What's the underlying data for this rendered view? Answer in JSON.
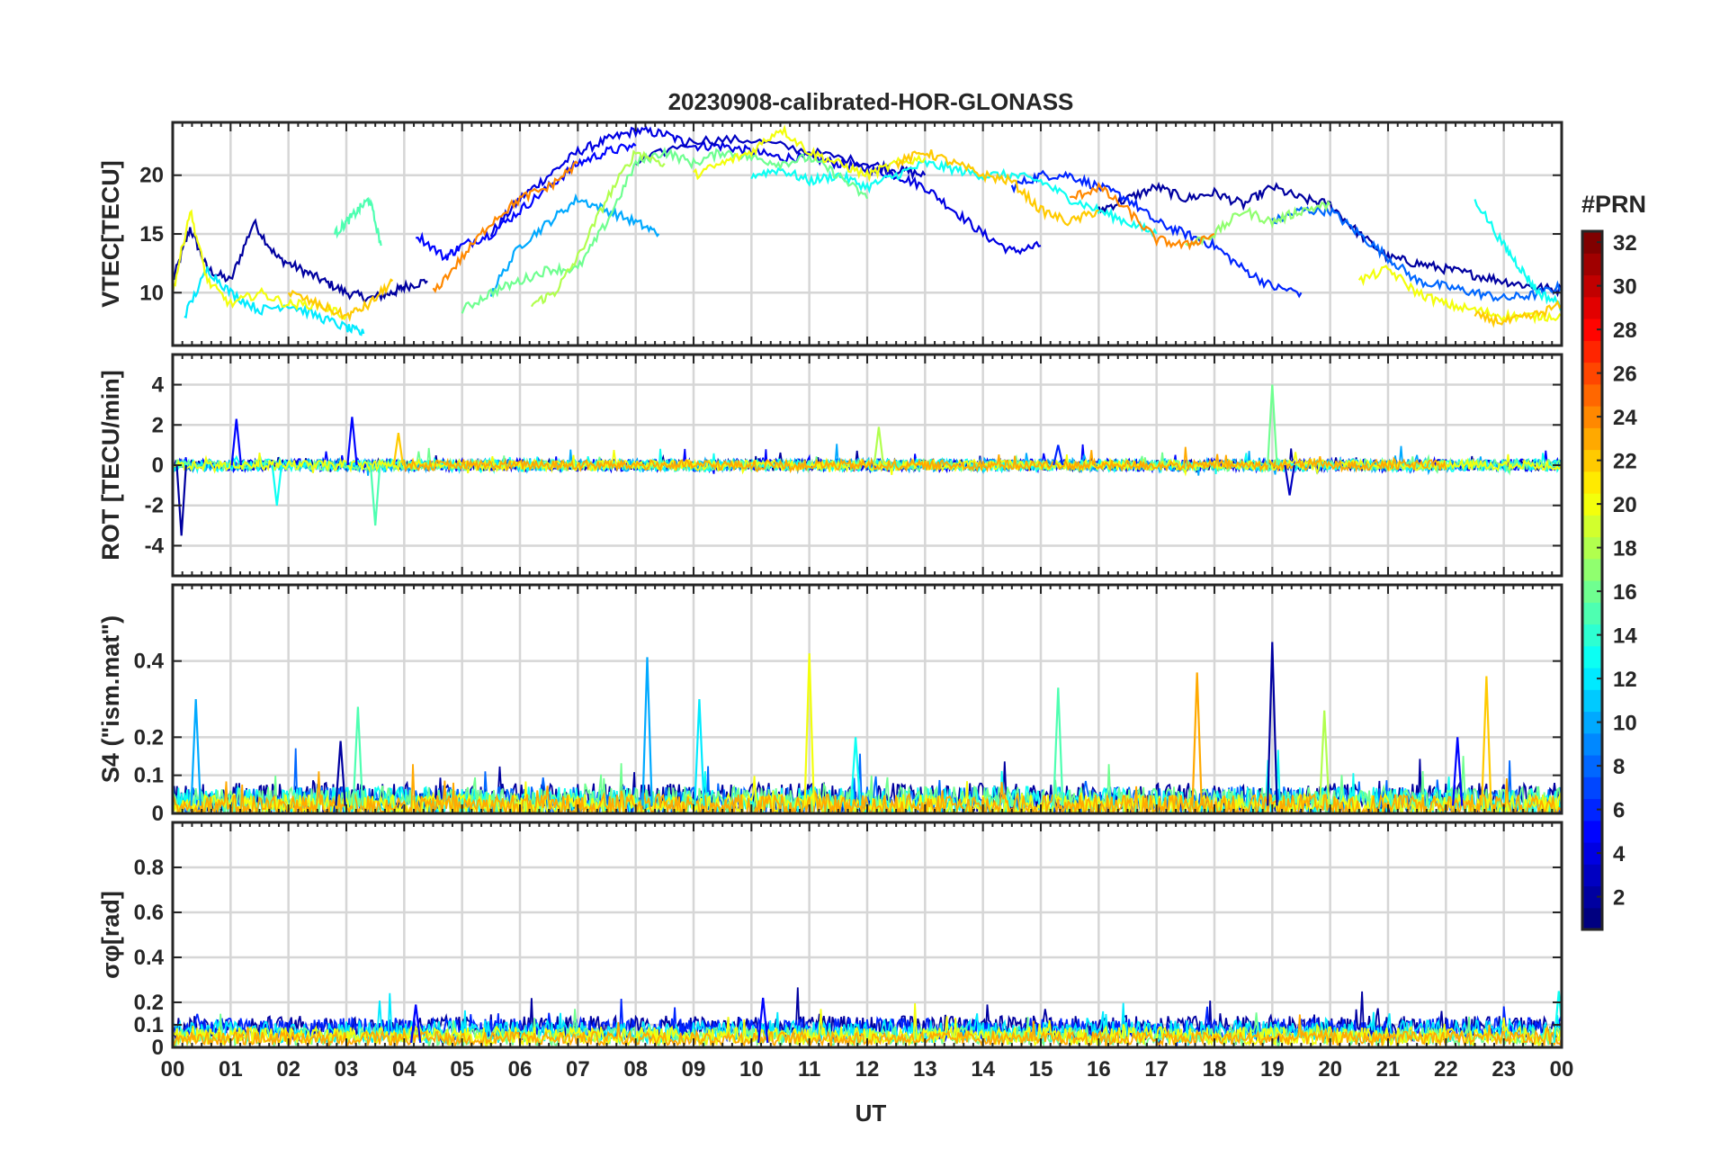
{
  "figure": {
    "title": "20230908-calibrated-HOR-GLONASS",
    "xlabel": "UT",
    "x_ticks": [
      "00",
      "01",
      "02",
      "03",
      "04",
      "05",
      "06",
      "07",
      "08",
      "09",
      "10",
      "11",
      "12",
      "13",
      "14",
      "15",
      "16",
      "17",
      "18",
      "19",
      "20",
      "21",
      "22",
      "23",
      "00"
    ]
  },
  "colorbar": {
    "label": "#PRN",
    "range": [
      1,
      32
    ],
    "ticks": [
      "2",
      "4",
      "6",
      "8",
      "10",
      "12",
      "14",
      "16",
      "18",
      "20",
      "22",
      "24",
      "26",
      "28",
      "30",
      "32"
    ],
    "tick_values": [
      2,
      4,
      6,
      8,
      10,
      12,
      14,
      16,
      18,
      20,
      22,
      24,
      26,
      28,
      30,
      32
    ]
  },
  "chart_data": [
    {
      "type": "line",
      "name": "vtec",
      "ylabel": "VTEC[TECU]",
      "ylim": [
        5.5,
        24.5
      ],
      "yticks": [
        10,
        15,
        20
      ],
      "ytick_labels": [
        "10",
        "15",
        "20"
      ],
      "series": [
        {
          "prn": 2,
          "x": [
            0.0,
            0.3,
            0.6,
            1.0,
            1.4,
            1.8,
            2.2,
            2.6,
            3.0,
            3.4,
            3.8,
            4.0,
            4.4
          ],
          "y": [
            11,
            15.5,
            12,
            11,
            16,
            13,
            12,
            11,
            10,
            9.5,
            10,
            10.5,
            11
          ]
        },
        {
          "prn": 4,
          "x": [
            5.5,
            6.0,
            6.5,
            7.0,
            7.5,
            8.0,
            8.5,
            9.0,
            9.5,
            10.0,
            10.5,
            11.0,
            11.5,
            12.0,
            12.5,
            13.0,
            13.5,
            14.0,
            14.5,
            15.0
          ],
          "y": [
            15,
            18,
            20,
            22,
            23,
            23.8,
            23.5,
            22.5,
            22.5,
            22,
            21.5,
            21.5,
            21,
            20.5,
            20,
            19,
            17,
            15,
            13.5,
            14
          ]
        },
        {
          "prn": 3,
          "x": [
            8.0,
            9.0,
            10.0,
            11.0,
            12.0,
            12.5,
            13.0
          ],
          "y": [
            21,
            23,
            23,
            22,
            21,
            20.5,
            20
          ]
        },
        {
          "prn": 2,
          "x": [
            16.0,
            16.5,
            17.0,
            17.5,
            18.0,
            18.5,
            19.0,
            19.5,
            20.0,
            20.5,
            21.0,
            21.5,
            22.0,
            22.5,
            23.0,
            23.5,
            24.0
          ],
          "y": [
            17,
            18,
            19,
            18,
            18.5,
            17.5,
            19,
            18,
            17.5,
            15,
            13,
            12.5,
            12,
            11.5,
            11,
            10.5,
            10.2
          ]
        },
        {
          "prn": 5,
          "x": [
            4.2,
            4.7,
            5.0,
            5.5,
            6.0,
            6.5,
            7.0,
            7.5,
            8.0
          ],
          "y": [
            15,
            13,
            14,
            15,
            17,
            19,
            21,
            22,
            22.5
          ]
        },
        {
          "prn": 6,
          "x": [
            14.5,
            15.0,
            15.5,
            16.0,
            16.5,
            17.0,
            17.5,
            18.0,
            18.5,
            19.0,
            19.5
          ],
          "y": [
            19,
            20,
            20,
            19,
            18,
            16,
            15,
            14,
            12,
            10.5,
            10
          ]
        },
        {
          "prn": 8,
          "x": [
            19.0,
            19.5,
            20.0,
            20.5,
            21.0,
            21.5,
            22.0,
            22.5,
            23.0,
            23.5,
            24.0
          ],
          "y": [
            16,
            17,
            17,
            15,
            13,
            11,
            10.5,
            10,
            9.5,
            9.8,
            10.5
          ]
        },
        {
          "prn": 10,
          "x": [
            5.5,
            6.0,
            6.5,
            7.0,
            7.5,
            8.0,
            8.4
          ],
          "y": [
            10,
            14,
            16,
            18,
            17,
            16,
            15
          ]
        },
        {
          "prn": 12,
          "x": [
            0.2,
            0.6,
            1.0,
            1.5,
            2.0,
            2.5,
            3.0,
            3.3
          ],
          "y": [
            8,
            12,
            10,
            8.5,
            9,
            8,
            7,
            6.5
          ]
        },
        {
          "prn": 13,
          "x": [
            10.0,
            10.5,
            11.0,
            11.5,
            12.0,
            12.5,
            13.0,
            13.5,
            14.0,
            14.5,
            15.0,
            15.5,
            16.0,
            16.5,
            17.0
          ],
          "y": [
            20,
            20.5,
            19.5,
            20,
            19,
            20,
            21,
            20.5,
            20,
            20,
            19.5,
            18,
            17,
            16,
            15
          ]
        },
        {
          "prn": 13,
          "x": [
            22.5,
            23.0,
            23.3,
            23.6,
            24.0
          ],
          "y": [
            18,
            14,
            12,
            10,
            9
          ]
        },
        {
          "prn": 15,
          "x": [
            2.8,
            3.0,
            3.2,
            3.4,
            3.6
          ],
          "y": [
            15,
            16,
            17,
            18,
            14
          ]
        },
        {
          "prn": 16,
          "x": [
            5.0,
            5.5,
            6.0,
            6.5,
            7.0,
            7.5,
            8.0,
            8.5,
            9.0,
            9.5,
            10.0,
            10.5,
            11.0,
            11.5,
            12.0
          ],
          "y": [
            8.5,
            10,
            11,
            12,
            12,
            16,
            21,
            22,
            21,
            22,
            21.5,
            21,
            21.5,
            20,
            18
          ]
        },
        {
          "prn": 18,
          "x": [
            6.2,
            6.6,
            7.0,
            7.5,
            8.0,
            8.5
          ],
          "y": [
            9,
            10,
            13,
            18,
            22,
            21
          ]
        },
        {
          "prn": 17,
          "x": [
            17.5,
            18.0,
            18.5,
            19.0,
            19.5,
            20.0
          ],
          "y": [
            14,
            15,
            17,
            16,
            17,
            17.5
          ]
        },
        {
          "prn": 20,
          "x": [
            9.0,
            9.5,
            10.0,
            10.5,
            11.0,
            11.5,
            12.0,
            12.5,
            13.0
          ],
          "y": [
            20,
            21,
            22,
            24,
            22,
            21,
            20,
            21,
            21.5
          ]
        },
        {
          "prn": 20,
          "x": [
            0.0,
            0.3,
            0.6,
            1.0,
            1.5,
            2.0,
            2.5,
            3.0
          ],
          "y": [
            10,
            17,
            11,
            9,
            10,
            9,
            9,
            8
          ]
        },
        {
          "prn": 20,
          "x": [
            20.5,
            21.0,
            21.5,
            22.0,
            22.5,
            23.0,
            23.5,
            24.0
          ],
          "y": [
            11,
            12,
            10,
            9,
            8.5,
            8,
            8,
            8
          ]
        },
        {
          "prn": 22,
          "x": [
            12.5,
            13.0,
            13.5,
            14.0,
            14.5,
            15.0,
            15.5,
            16.0
          ],
          "y": [
            21,
            22,
            21,
            20,
            19.5,
            17,
            16,
            17
          ]
        },
        {
          "prn": 22,
          "x": [
            2.0,
            2.5,
            3.0,
            3.4,
            3.8
          ],
          "y": [
            10,
            9,
            8,
            9,
            11
          ]
        },
        {
          "prn": 22,
          "x": [
            22.5,
            23.0,
            23.5,
            24.0
          ],
          "y": [
            8,
            7.5,
            8,
            9
          ]
        },
        {
          "prn": 24,
          "x": [
            4.5,
            5.0,
            5.5,
            6.0,
            6.5,
            7.0
          ],
          "y": [
            10,
            13,
            16,
            18,
            19,
            21
          ]
        },
        {
          "prn": 24,
          "x": [
            15.5,
            16.0,
            16.5,
            17.0,
            17.5,
            18.0
          ],
          "y": [
            18,
            19,
            17,
            14.5,
            14,
            15
          ]
        }
      ]
    },
    {
      "type": "line",
      "name": "rot",
      "ylabel": "ROT [TECU/min]",
      "ylim": [
        -5.5,
        5.5
      ],
      "yticks": [
        -4,
        -2,
        0,
        2,
        4
      ],
      "ytick_labels": [
        "-4",
        "-2",
        "0",
        "2",
        "4"
      ],
      "noise_series": [
        {
          "prn": 2,
          "start": 0.0,
          "end": 24.0,
          "amp": 0.25
        },
        {
          "prn": 5,
          "start": 0.0,
          "end": 24.0,
          "amp": 0.3
        },
        {
          "prn": 10,
          "start": 0.0,
          "end": 24.0,
          "amp": 0.3
        },
        {
          "prn": 13,
          "start": 0.0,
          "end": 24.0,
          "amp": 0.3
        },
        {
          "prn": 16,
          "start": 0.0,
          "end": 24.0,
          "amp": 0.25
        },
        {
          "prn": 20,
          "start": 0.0,
          "end": 24.0,
          "amp": 0.25
        },
        {
          "prn": 23,
          "start": 4.0,
          "end": 22.0,
          "amp": 0.25
        }
      ],
      "spikes": [
        {
          "prn": 2,
          "x": 0.15,
          "y": -3.5
        },
        {
          "prn": 5,
          "x": 1.1,
          "y": 2.3
        },
        {
          "prn": 5,
          "x": 3.1,
          "y": 2.4
        },
        {
          "prn": 15,
          "x": 3.5,
          "y": -3.0
        },
        {
          "prn": 13,
          "x": 1.8,
          "y": -2.0
        },
        {
          "prn": 16,
          "x": 19.0,
          "y": 4.0
        },
        {
          "prn": 18,
          "x": 12.2,
          "y": 1.9
        },
        {
          "prn": 6,
          "x": 15.3,
          "y": 1.0
        },
        {
          "prn": 22,
          "x": 3.9,
          "y": 1.6
        },
        {
          "prn": 3,
          "x": 19.3,
          "y": -1.5
        }
      ]
    },
    {
      "type": "line",
      "name": "s4",
      "ylabel": "S4 (\"ism.mat\")",
      "ylim": [
        0.0,
        0.6
      ],
      "yticks": [
        0,
        0.1,
        0.2,
        0.4
      ],
      "ytick_labels": [
        "0",
        "0.1",
        "0.2",
        "0.4"
      ],
      "noise_series": [
        {
          "prn": 2,
          "start": 0.0,
          "end": 24.0,
          "base": 0.04,
          "amp": 0.04
        },
        {
          "prn": 8,
          "start": 0.0,
          "end": 24.0,
          "base": 0.03,
          "amp": 0.04
        },
        {
          "prn": 13,
          "start": 0.0,
          "end": 24.0,
          "base": 0.03,
          "amp": 0.04
        },
        {
          "prn": 16,
          "start": 0.0,
          "end": 24.0,
          "base": 0.03,
          "amp": 0.04
        },
        {
          "prn": 20,
          "start": 0.0,
          "end": 24.0,
          "base": 0.02,
          "amp": 0.03
        },
        {
          "prn": 23,
          "start": 0.0,
          "end": 24.0,
          "base": 0.02,
          "amp": 0.03
        }
      ],
      "spikes": [
        {
          "prn": 10,
          "x": 0.4,
          "y": 0.3
        },
        {
          "prn": 2,
          "x": 2.9,
          "y": 0.19
        },
        {
          "prn": 15,
          "x": 3.2,
          "y": 0.28
        },
        {
          "prn": 10,
          "x": 8.2,
          "y": 0.41
        },
        {
          "prn": 12,
          "x": 9.1,
          "y": 0.3
        },
        {
          "prn": 20,
          "x": 11.0,
          "y": 0.42
        },
        {
          "prn": 13,
          "x": 11.8,
          "y": 0.2
        },
        {
          "prn": 15,
          "x": 15.3,
          "y": 0.33
        },
        {
          "prn": 23,
          "x": 17.7,
          "y": 0.37
        },
        {
          "prn": 2,
          "x": 19.0,
          "y": 0.45
        },
        {
          "prn": 18,
          "x": 19.9,
          "y": 0.27
        },
        {
          "prn": 5,
          "x": 22.2,
          "y": 0.2
        },
        {
          "prn": 22,
          "x": 22.7,
          "y": 0.36
        }
      ]
    },
    {
      "type": "line",
      "name": "sigma_phi",
      "ylabel": "σφ[rad]",
      "ylim": [
        0.0,
        1.0
      ],
      "yticks": [
        0,
        0.1,
        0.2,
        0.4,
        0.6,
        0.8
      ],
      "ytick_labels": [
        "0",
        "0.1",
        "0.2",
        "0.4",
        "0.6",
        "0.8"
      ],
      "noise_series": [
        {
          "prn": 2,
          "start": 0.0,
          "end": 24.0,
          "base": 0.09,
          "amp": 0.05
        },
        {
          "prn": 6,
          "start": 0.0,
          "end": 24.0,
          "base": 0.08,
          "amp": 0.05
        },
        {
          "prn": 12,
          "start": 0.0,
          "end": 24.0,
          "base": 0.07,
          "amp": 0.05
        },
        {
          "prn": 16,
          "start": 0.0,
          "end": 24.0,
          "base": 0.05,
          "amp": 0.04
        },
        {
          "prn": 20,
          "start": 0.0,
          "end": 24.0,
          "base": 0.05,
          "amp": 0.04
        },
        {
          "prn": 23,
          "start": 0.0,
          "end": 24.0,
          "base": 0.04,
          "amp": 0.03
        }
      ],
      "spikes": [
        {
          "prn": 5,
          "x": 10.2,
          "y": 0.22
        },
        {
          "prn": 13,
          "x": 23.95,
          "y": 0.25
        },
        {
          "prn": 5,
          "x": 4.2,
          "y": 0.19
        }
      ]
    }
  ]
}
